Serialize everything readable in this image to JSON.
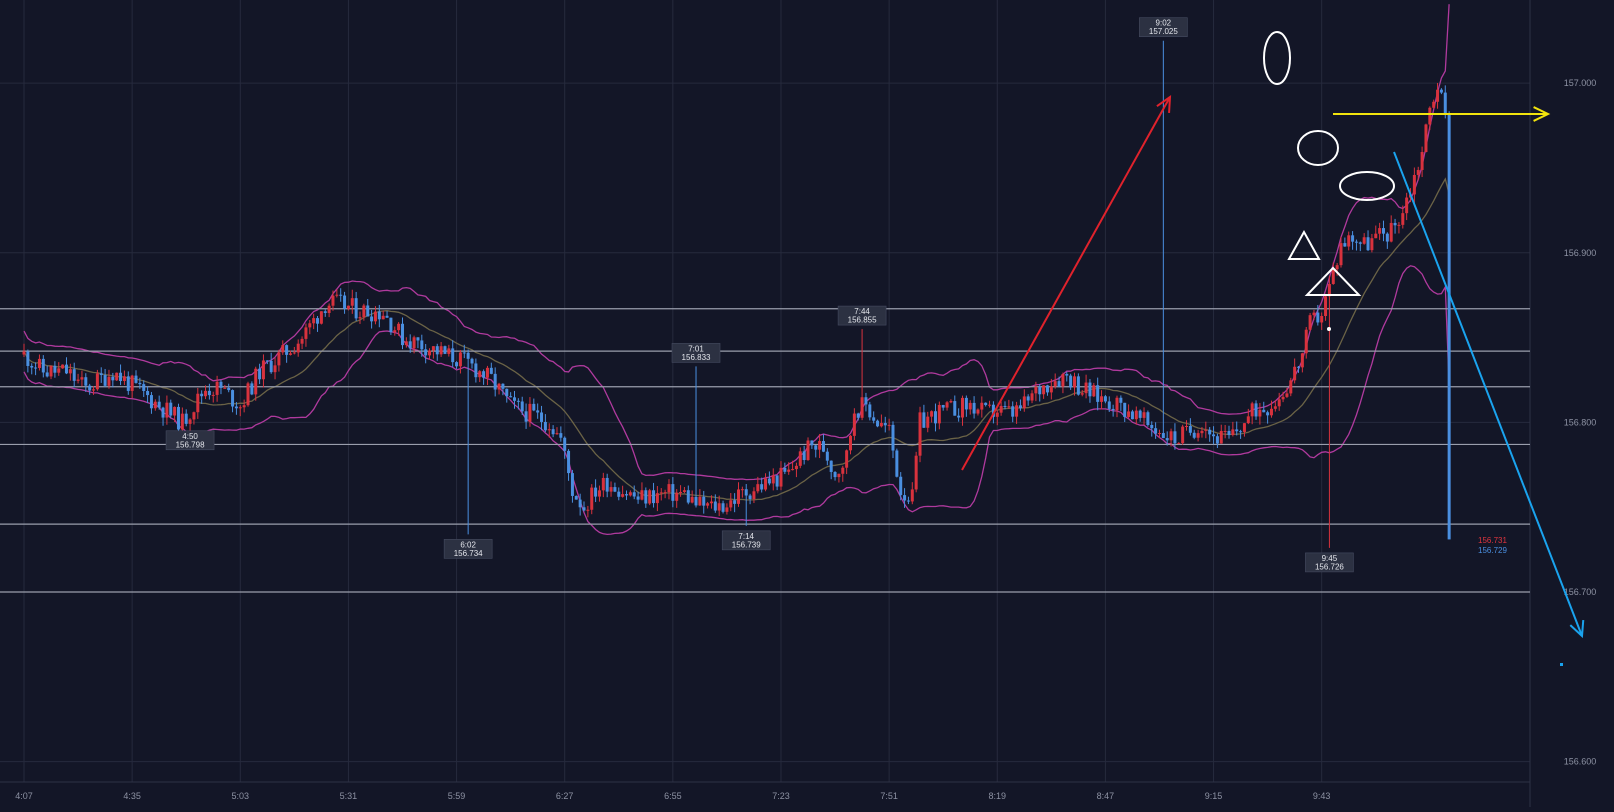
{
  "chart_data": {
    "type": "candlestick",
    "title": "",
    "xlabel": "",
    "ylabel": "",
    "grid": true,
    "colors": {
      "background": "#131627",
      "grid": "#262a3d",
      "up": "#d8323d",
      "down": "#4a8fe0",
      "bollinger_bands": "#b03a9e",
      "middle_band": "#6b6346",
      "horizontal_levels": "#9a9eac",
      "axis_text": "#8d92a3",
      "marker_box": "#2c3142",
      "marker_text": "#e4e6ec",
      "arrow_up": "#e0222c",
      "arrow_sideways": "#f2e40d",
      "arrow_down": "#1aa3ee",
      "shapes": "#ffffff"
    },
    "y_ticks": [
      "157.000",
      "156.900",
      "156.800",
      "156.700",
      "156.600"
    ],
    "ylim": [
      156.588,
      157.049
    ],
    "x_ticks": [
      "4:07",
      "4:35",
      "5:03",
      "5:31",
      "5:59",
      "6:27",
      "6:55",
      "7:23",
      "7:51",
      "8:19",
      "8:47",
      "9:15",
      "9:43"
    ],
    "x_range_minutes": [
      247,
      617
    ],
    "horizontal_levels": [
      156.867,
      156.842,
      156.821,
      156.787,
      156.74,
      156.7
    ],
    "price_markers": [
      {
        "time": "4:50",
        "value": "156.798",
        "pos": "below"
      },
      {
        "time": "6:02",
        "value": "156.734",
        "pos": "below"
      },
      {
        "time": "7:01",
        "value": "156.833",
        "pos": "above"
      },
      {
        "time": "7:14",
        "value": "156.739",
        "pos": "below"
      },
      {
        "time": "7:44",
        "value": "156.855",
        "pos": "above"
      },
      {
        "time": "9:02",
        "value": "157.025",
        "pos": "above"
      },
      {
        "time": "9:45",
        "value": "156.726",
        "pos": "below"
      }
    ],
    "last_prices": [
      {
        "value": "156.731",
        "color": "#e0353f"
      },
      {
        "value": "156.729",
        "color": "#4a8fe0"
      }
    ],
    "close_path": [
      [
        247,
        156.84
      ],
      [
        252,
        156.83
      ],
      [
        258,
        156.83
      ],
      [
        263,
        156.82
      ],
      [
        270,
        156.83
      ],
      [
        276,
        156.82
      ],
      [
        282,
        156.81
      ],
      [
        288,
        156.8
      ],
      [
        294,
        156.82
      ],
      [
        298,
        156.82
      ],
      [
        303,
        156.81
      ],
      [
        308,
        156.83
      ],
      [
        314,
        156.84
      ],
      [
        319,
        156.85
      ],
      [
        325,
        156.87
      ],
      [
        328,
        156.87
      ],
      [
        334,
        156.866
      ],
      [
        340,
        156.865
      ],
      [
        345,
        156.85
      ],
      [
        351,
        156.845
      ],
      [
        356,
        156.84
      ],
      [
        362,
        156.835
      ],
      [
        368,
        156.825
      ],
      [
        373,
        156.81
      ],
      [
        378,
        156.805
      ],
      [
        383,
        156.8
      ],
      [
        386,
        156.79
      ],
      [
        389,
        156.76
      ],
      [
        392,
        156.75
      ],
      [
        395,
        156.76
      ],
      [
        398,
        156.765
      ],
      [
        402,
        156.76
      ],
      [
        406,
        156.755
      ],
      [
        410,
        156.757
      ],
      [
        414,
        156.758
      ],
      [
        418,
        156.758
      ],
      [
        421,
        156.752
      ],
      [
        425,
        156.75
      ],
      [
        429,
        156.752
      ],
      [
        433,
        156.758
      ],
      [
        437,
        156.762
      ],
      [
        441,
        156.766
      ],
      [
        445,
        156.77
      ],
      [
        448,
        156.78
      ],
      [
        451,
        156.786
      ],
      [
        454,
        156.785
      ],
      [
        457,
        156.77
      ],
      [
        460,
        156.78
      ],
      [
        462,
        156.808
      ],
      [
        465,
        156.81
      ],
      [
        468,
        156.8
      ],
      [
        471,
        156.795
      ],
      [
        474,
        156.76
      ],
      [
        477,
        156.755
      ],
      [
        479,
        156.8
      ],
      [
        483,
        156.805
      ],
      [
        488,
        156.808
      ],
      [
        492,
        156.81
      ],
      [
        496,
        156.805
      ],
      [
        499,
        156.807
      ],
      [
        503,
        156.805
      ],
      [
        506,
        156.81
      ],
      [
        509,
        156.818
      ],
      [
        513,
        156.825
      ],
      [
        517,
        156.828
      ],
      [
        521,
        156.82
      ],
      [
        525,
        156.815
      ],
      [
        529,
        156.812
      ],
      [
        533,
        156.807
      ],
      [
        537,
        156.8
      ],
      [
        541,
        156.795
      ],
      [
        545,
        156.79
      ],
      [
        549,
        156.795
      ],
      [
        552,
        156.8
      ],
      [
        555,
        156.792
      ],
      [
        559,
        156.79
      ],
      [
        563,
        156.8
      ],
      [
        566,
        156.808
      ],
      [
        569,
        156.81
      ],
      [
        572,
        156.815
      ],
      [
        575,
        156.825
      ],
      [
        578,
        156.84
      ],
      [
        580,
        156.858
      ],
      [
        583,
        156.865
      ],
      [
        585,
        156.88
      ],
      [
        588,
        156.905
      ],
      [
        591,
        156.91
      ],
      [
        594,
        156.905
      ],
      [
        598,
        156.91
      ],
      [
        601,
        156.913
      ],
      [
        604,
        156.925
      ],
      [
        607,
        156.945
      ],
      [
        609,
        156.96
      ],
      [
        611,
        156.985
      ],
      [
        613,
        157.0
      ],
      [
        615,
        156.98
      ],
      [
        617,
        156.965
      ]
    ]
  }
}
